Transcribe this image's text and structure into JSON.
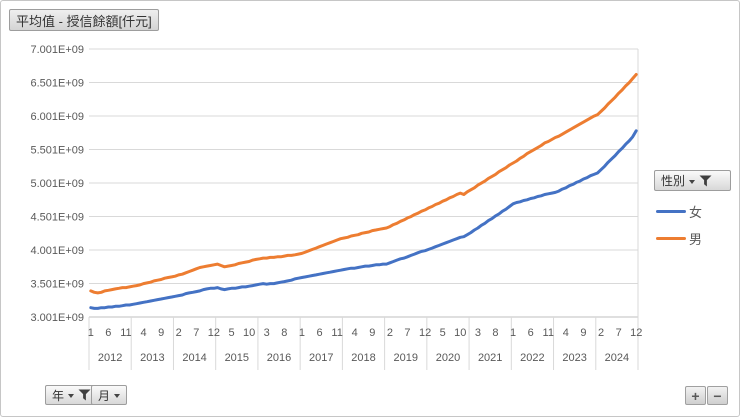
{
  "title_button": {
    "label": "平均值 - 授信餘額[仟元]"
  },
  "field_buttons": {
    "legend_label": "性別",
    "year_label": "年",
    "month_label": "月",
    "expand_label": "+",
    "collapse_label": "−"
  },
  "legend": {
    "items": [
      {
        "label": "女",
        "color": "#4472C4"
      },
      {
        "label": "男",
        "color": "#ED7D31"
      }
    ]
  },
  "colors": {
    "female_line": "#4472C4",
    "male_line": "#ED7D31",
    "gridline": "#D9D9D9",
    "axis_line": "#BFBFBF",
    "axis_text": "#595959"
  },
  "chart_data": {
    "type": "line",
    "title": "平均值 - 授信餘額[仟元]",
    "legend_position": "right",
    "grid": true,
    "value_unit": 1000000000,
    "y_axis": {
      "min": 3.001,
      "max": 7.001,
      "tick_step": 0.5,
      "tick_labels": [
        "3.001E+09",
        "3.501E+09",
        "4.001E+09",
        "4.501E+09",
        "5.001E+09",
        "5.501E+09",
        "6.001E+09",
        "6.501E+09",
        "7.001E+09"
      ]
    },
    "x_axis": {
      "years": [
        "2012",
        "2013",
        "2014",
        "2015",
        "2016",
        "2017",
        "2018",
        "2019",
        "2020",
        "2021",
        "2022",
        "2023",
        "2024"
      ],
      "months_per_year": 12,
      "month_tick_step": 5,
      "month_tick_labels": [
        "1",
        "6",
        "11",
        "4",
        "9",
        "2",
        "7",
        "12",
        "5",
        "10",
        "3",
        "8",
        "1",
        "6",
        "11",
        "4",
        "9",
        "2",
        "7",
        "12",
        "5",
        "10",
        "3",
        "8",
        "1",
        "6",
        "11",
        "4",
        "9",
        "2",
        "7",
        "12"
      ]
    },
    "series": [
      {
        "name": "女",
        "key": "female",
        "color": "#4472C4",
        "values_e9": [
          3.14,
          3.13,
          3.13,
          3.14,
          3.14,
          3.15,
          3.15,
          3.16,
          3.16,
          3.17,
          3.18,
          3.18,
          3.19,
          3.2,
          3.21,
          3.22,
          3.23,
          3.24,
          3.25,
          3.26,
          3.27,
          3.28,
          3.29,
          3.3,
          3.31,
          3.32,
          3.33,
          3.35,
          3.36,
          3.37,
          3.38,
          3.39,
          3.41,
          3.42,
          3.43,
          3.43,
          3.44,
          3.42,
          3.41,
          3.42,
          3.43,
          3.43,
          3.44,
          3.45,
          3.45,
          3.46,
          3.47,
          3.48,
          3.49,
          3.5,
          3.49,
          3.5,
          3.5,
          3.51,
          3.52,
          3.53,
          3.54,
          3.55,
          3.57,
          3.58,
          3.59,
          3.6,
          3.61,
          3.62,
          3.63,
          3.64,
          3.65,
          3.66,
          3.67,
          3.68,
          3.69,
          3.7,
          3.71,
          3.72,
          3.73,
          3.73,
          3.74,
          3.75,
          3.76,
          3.76,
          3.77,
          3.78,
          3.78,
          3.79,
          3.79,
          3.81,
          3.83,
          3.85,
          3.87,
          3.88,
          3.9,
          3.92,
          3.94,
          3.96,
          3.98,
          3.99,
          4.01,
          4.03,
          4.05,
          4.07,
          4.09,
          4.11,
          4.13,
          4.15,
          4.17,
          4.19,
          4.2,
          4.23,
          4.26,
          4.3,
          4.33,
          4.37,
          4.4,
          4.44,
          4.47,
          4.51,
          4.54,
          4.58,
          4.61,
          4.65,
          4.69,
          4.71,
          4.72,
          4.74,
          4.75,
          4.77,
          4.78,
          4.8,
          4.81,
          4.83,
          4.84,
          4.85,
          4.86,
          4.88,
          4.91,
          4.93,
          4.96,
          4.98,
          5.01,
          5.03,
          5.06,
          5.08,
          5.11,
          5.13,
          5.15,
          5.2,
          5.25,
          5.31,
          5.36,
          5.41,
          5.47,
          5.52,
          5.58,
          5.63,
          5.69,
          5.78
        ]
      },
      {
        "name": "男",
        "key": "male",
        "color": "#ED7D31",
        "values_e9": [
          3.39,
          3.37,
          3.36,
          3.37,
          3.39,
          3.4,
          3.41,
          3.42,
          3.43,
          3.44,
          3.44,
          3.45,
          3.46,
          3.47,
          3.48,
          3.5,
          3.51,
          3.52,
          3.54,
          3.55,
          3.56,
          3.58,
          3.59,
          3.6,
          3.61,
          3.63,
          3.64,
          3.66,
          3.68,
          3.7,
          3.72,
          3.74,
          3.75,
          3.76,
          3.77,
          3.78,
          3.79,
          3.77,
          3.75,
          3.76,
          3.77,
          3.78,
          3.8,
          3.81,
          3.82,
          3.83,
          3.85,
          3.86,
          3.87,
          3.88,
          3.88,
          3.89,
          3.89,
          3.9,
          3.9,
          3.91,
          3.92,
          3.92,
          3.93,
          3.94,
          3.95,
          3.97,
          3.99,
          4.01,
          4.03,
          4.05,
          4.07,
          4.09,
          4.11,
          4.13,
          4.15,
          4.17,
          4.18,
          4.19,
          4.21,
          4.22,
          4.23,
          4.25,
          4.26,
          4.27,
          4.29,
          4.3,
          4.31,
          4.32,
          4.33,
          4.35,
          4.38,
          4.4,
          4.43,
          4.45,
          4.48,
          4.5,
          4.53,
          4.55,
          4.58,
          4.6,
          4.63,
          4.65,
          4.68,
          4.7,
          4.73,
          4.75,
          4.78,
          4.8,
          4.83,
          4.85,
          4.83,
          4.87,
          4.9,
          4.93,
          4.97,
          5.0,
          5.03,
          5.07,
          5.1,
          5.13,
          5.17,
          5.2,
          5.23,
          5.27,
          5.3,
          5.33,
          5.37,
          5.4,
          5.44,
          5.47,
          5.5,
          5.53,
          5.56,
          5.6,
          5.62,
          5.65,
          5.68,
          5.7,
          5.73,
          5.76,
          5.79,
          5.82,
          5.85,
          5.88,
          5.91,
          5.94,
          5.97,
          6.0,
          6.02,
          6.07,
          6.12,
          6.18,
          6.23,
          6.28,
          6.34,
          6.39,
          6.45,
          6.5,
          6.56,
          6.62
        ]
      }
    ]
  }
}
